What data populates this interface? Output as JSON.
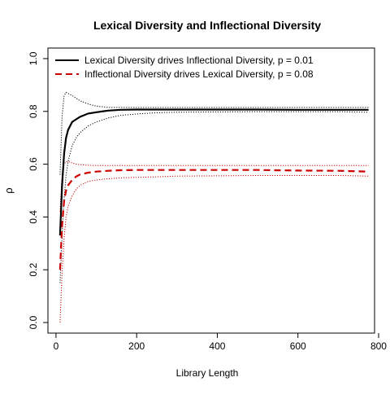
{
  "chart_data": {
    "type": "line",
    "title": "Lexical Diversity and Inflectional Diversity",
    "xlabel": "Library Length",
    "ylabel": "ρ",
    "xlim": [
      -20,
      790
    ],
    "ylim": [
      -0.04,
      1.04
    ],
    "x_ticks": [
      0,
      200,
      400,
      600,
      800
    ],
    "x_tick_labels": [
      "0",
      "200",
      "400",
      "600",
      "800"
    ],
    "y_ticks": [
      0.0,
      0.2,
      0.4,
      0.6,
      0.8,
      1.0
    ],
    "y_tick_labels": [
      "0.0",
      "0.2",
      "0.4",
      "0.6",
      "0.8",
      "1.0"
    ],
    "grid": false,
    "legend_position": "top-left",
    "series": [
      {
        "name": "Lexical Diversity drives Inflectional Diversity, p = 0.01",
        "color": "#000000",
        "dash": "solid",
        "x": [
          10,
          15,
          20,
          25,
          30,
          40,
          50,
          60,
          80,
          100,
          130,
          160,
          200,
          250,
          300,
          400,
          500,
          600,
          700,
          775
        ],
        "y": [
          0.33,
          0.52,
          0.64,
          0.7,
          0.73,
          0.76,
          0.77,
          0.78,
          0.792,
          0.797,
          0.803,
          0.806,
          0.807,
          0.807,
          0.807,
          0.807,
          0.807,
          0.806,
          0.806,
          0.806
        ],
        "upper": [
          0.56,
          0.78,
          0.86,
          0.872,
          0.868,
          0.86,
          0.85,
          0.84,
          0.828,
          0.82,
          0.815,
          0.815,
          0.815,
          0.815,
          0.815,
          0.815,
          0.815,
          0.815,
          0.815,
          0.815
        ],
        "lower": [
          0.15,
          0.33,
          0.47,
          0.56,
          0.61,
          0.67,
          0.7,
          0.72,
          0.745,
          0.76,
          0.775,
          0.785,
          0.79,
          0.795,
          0.797,
          0.798,
          0.799,
          0.799,
          0.799,
          0.797
        ]
      },
      {
        "name": "Inflectional Diversity drives Lexical Diversity, p = 0.08",
        "color": "#cc0000",
        "dash": "dashed",
        "x": [
          10,
          15,
          20,
          25,
          30,
          40,
          50,
          60,
          80,
          100,
          130,
          160,
          200,
          250,
          300,
          400,
          500,
          600,
          700,
          775
        ],
        "y": [
          0.2,
          0.37,
          0.46,
          0.5,
          0.52,
          0.54,
          0.553,
          0.561,
          0.568,
          0.572,
          0.575,
          0.577,
          0.578,
          0.578,
          0.578,
          0.578,
          0.578,
          0.576,
          0.575,
          0.572
        ],
        "upper": [
          0.42,
          0.56,
          0.6,
          0.61,
          0.61,
          0.605,
          0.6,
          0.598,
          0.596,
          0.595,
          0.595,
          0.595,
          0.595,
          0.595,
          0.595,
          0.595,
          0.595,
          0.595,
          0.595,
          0.595
        ],
        "lower": [
          0.0,
          0.19,
          0.32,
          0.4,
          0.44,
          0.48,
          0.505,
          0.52,
          0.535,
          0.54,
          0.545,
          0.548,
          0.55,
          0.552,
          0.555,
          0.556,
          0.557,
          0.557,
          0.557,
          0.555
        ]
      }
    ]
  }
}
